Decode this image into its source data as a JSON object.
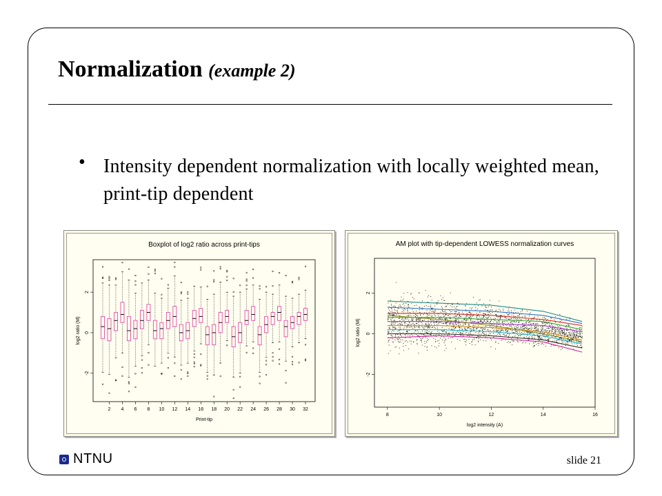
{
  "slide": {
    "title_main": "Normalization",
    "title_sub": "(example 2)",
    "bullet_dot": "•",
    "bullet": "Intensity dependent normalization with locally weighted mean, print-tip dependent",
    "footer_logo": "NTNU",
    "slide_number": "slide 21"
  },
  "chart_data": [
    {
      "type": "box",
      "title": "Boxplot of log2 ratio across print-tips",
      "xlabel": "Print-tip",
      "ylabel": "log2 ratio (M)",
      "x_ticks": [
        2,
        4,
        6,
        8,
        10,
        12,
        14,
        16,
        18,
        20,
        22,
        24,
        26,
        28,
        30,
        32
      ],
      "y_ticks": [
        -2,
        0,
        2
      ],
      "ylim": [
        -3.4,
        3.6
      ],
      "boxes": [
        {
          "tip": 1,
          "q1": -0.3,
          "med": 0.3,
          "q3": 0.8
        },
        {
          "tip": 2,
          "q1": -0.4,
          "med": 0.2,
          "q3": 0.7
        },
        {
          "tip": 3,
          "q1": 0.1,
          "med": 0.6,
          "q3": 1.0
        },
        {
          "tip": 4,
          "q1": 0.5,
          "med": 0.9,
          "q3": 1.5
        },
        {
          "tip": 5,
          "q1": -0.4,
          "med": 0.1,
          "q3": 0.8
        },
        {
          "tip": 6,
          "q1": -0.3,
          "med": 0.2,
          "q3": 0.6
        },
        {
          "tip": 7,
          "q1": 0.2,
          "med": 0.6,
          "q3": 1.1
        },
        {
          "tip": 8,
          "q1": 0.6,
          "med": 1.0,
          "q3": 1.4
        },
        {
          "tip": 9,
          "q1": -0.3,
          "med": 0.1,
          "q3": 0.6
        },
        {
          "tip": 10,
          "q1": -0.3,
          "med": 0.2,
          "q3": 0.5
        },
        {
          "tip": 11,
          "q1": 0.2,
          "med": 0.6,
          "q3": 1.0
        },
        {
          "tip": 12,
          "q1": 0.3,
          "med": 0.8,
          "q3": 1.3
        },
        {
          "tip": 13,
          "q1": -0.4,
          "med": 0.0,
          "q3": 0.4
        },
        {
          "tip": 14,
          "q1": -0.3,
          "med": 0.1,
          "q3": 0.5
        },
        {
          "tip": 15,
          "q1": 0.3,
          "med": 0.7,
          "q3": 1.1
        },
        {
          "tip": 16,
          "q1": 0.5,
          "med": 0.8,
          "q3": 1.2
        },
        {
          "tip": 17,
          "q1": -0.6,
          "med": -0.1,
          "q3": 0.3
        },
        {
          "tip": 18,
          "q1": -0.6,
          "med": 0.0,
          "q3": 0.4
        },
        {
          "tip": 19,
          "q1": 0.0,
          "med": 0.5,
          "q3": 1.0
        },
        {
          "tip": 20,
          "q1": 0.5,
          "med": 0.8,
          "q3": 1.1
        },
        {
          "tip": 21,
          "q1": -0.7,
          "med": -0.2,
          "q3": 0.3
        },
        {
          "tip": 22,
          "q1": -0.5,
          "med": 0.0,
          "q3": 0.5
        },
        {
          "tip": 23,
          "q1": 0.4,
          "med": 0.6,
          "q3": 1.1
        },
        {
          "tip": 24,
          "q1": 0.6,
          "med": 0.9,
          "q3": 1.3
        },
        {
          "tip": 25,
          "q1": -0.6,
          "med": -0.1,
          "q3": 0.3
        },
        {
          "tip": 26,
          "q1": 0.0,
          "med": 0.4,
          "q3": 0.8
        },
        {
          "tip": 27,
          "q1": 0.4,
          "med": 0.8,
          "q3": 1.0
        },
        {
          "tip": 28,
          "q1": 0.6,
          "med": 1.0,
          "q3": 1.3
        },
        {
          "tip": 29,
          "q1": -0.2,
          "med": 0.3,
          "q3": 0.6
        },
        {
          "tip": 30,
          "q1": 0.2,
          "med": 0.5,
          "q3": 0.8
        },
        {
          "tip": 31,
          "q1": 0.4,
          "med": 0.8,
          "q3": 1.0
        },
        {
          "tip": 32,
          "q1": 0.6,
          "med": 0.9,
          "q3": 1.2
        }
      ],
      "box_color": "#e24aa6"
    },
    {
      "type": "scatter",
      "title": "AM plot with tip-dependent LOWESS normalization curves",
      "xlabel": "log2 intensity (A)",
      "ylabel": "log2 ratio (M)",
      "x_ticks": [
        8,
        10,
        12,
        14,
        16
      ],
      "y_ticks": [
        -2,
        0,
        2
      ],
      "xlim": [
        7.5,
        16
      ],
      "ylim": [
        -3.6,
        3.7
      ],
      "curves": [
        {
          "color": "#1f8a8a",
          "pts": [
            [
              8.0,
              1.6
            ],
            [
              10,
              1.5
            ],
            [
              12,
              1.4
            ],
            [
              14,
              1.1
            ],
            [
              15.5,
              0.6
            ]
          ]
        },
        {
          "color": "#2b6fd6",
          "pts": [
            [
              8.0,
              1.3
            ],
            [
              10,
              1.2
            ],
            [
              12,
              1.1
            ],
            [
              14,
              0.9
            ],
            [
              15.5,
              0.5
            ]
          ]
        },
        {
          "color": "#d62b2b",
          "pts": [
            [
              8.0,
              1.0
            ],
            [
              10,
              1.0
            ],
            [
              12,
              0.9
            ],
            [
              14,
              0.7
            ],
            [
              15.5,
              0.4
            ]
          ]
        },
        {
          "color": "#3aa33a",
          "pts": [
            [
              8.0,
              0.8
            ],
            [
              10,
              0.8
            ],
            [
              12,
              0.7
            ],
            [
              14,
              0.6
            ],
            [
              15.5,
              0.2
            ]
          ]
        },
        {
          "color": "#a83ad6",
          "pts": [
            [
              8.0,
              0.6
            ],
            [
              10,
              0.6
            ],
            [
              12,
              0.5
            ],
            [
              14,
              0.4
            ],
            [
              15.5,
              0.1
            ]
          ]
        },
        {
          "color": "#d68a1f",
          "pts": [
            [
              8.0,
              0.4
            ],
            [
              10,
              0.4
            ],
            [
              12,
              0.3
            ],
            [
              14,
              0.1
            ],
            [
              15.5,
              -0.3
            ]
          ]
        },
        {
          "color": "#1fb8d6",
          "pts": [
            [
              8.0,
              0.2
            ],
            [
              10,
              0.2
            ],
            [
              12,
              0.1
            ],
            [
              14,
              -0.1
            ],
            [
              15.5,
              -0.5
            ]
          ]
        },
        {
          "color": "#333333",
          "pts": [
            [
              8.0,
              0.0
            ],
            [
              10,
              0.0
            ],
            [
              12,
              -0.1
            ],
            [
              14,
              -0.3
            ],
            [
              15.5,
              -0.7
            ]
          ]
        },
        {
          "color": "#d61fa6",
          "pts": [
            [
              8.0,
              -0.2
            ],
            [
              10,
              -0.1
            ],
            [
              12,
              -0.2
            ],
            [
              14,
              -0.4
            ],
            [
              15.5,
              -0.9
            ]
          ]
        },
        {
          "color": "#8a8a1f",
          "pts": [
            [
              8.0,
              0.9
            ],
            [
              10,
              0.7
            ],
            [
              12,
              0.4
            ],
            [
              14,
              0.0
            ],
            [
              15.5,
              -0.4
            ]
          ]
        }
      ]
    }
  ]
}
